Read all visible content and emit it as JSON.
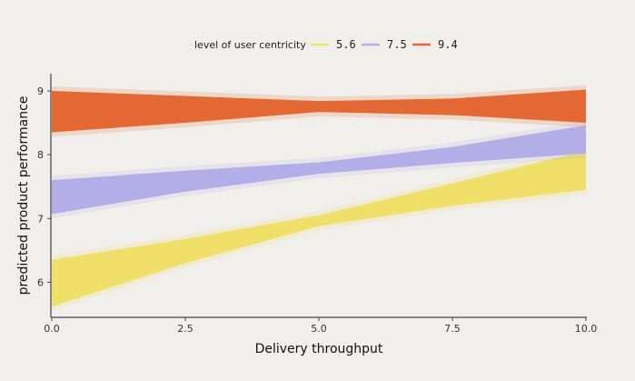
{
  "chart_data": {
    "type": "area",
    "title": "",
    "xlabel": "Delivery throughput",
    "ylabel": "predicted product performance",
    "xlim": [
      0,
      10
    ],
    "ylim": [
      5.45,
      9.27
    ],
    "xticks": [
      0,
      2.5,
      5,
      7.5,
      10
    ],
    "xtick_labels": [
      "0.0",
      "2.5",
      "5.0",
      "7.5",
      "10.0"
    ],
    "yticks": [
      6,
      7,
      8,
      9
    ],
    "ytick_labels": [
      "6",
      "7",
      "8",
      "9"
    ],
    "grid": false,
    "legend": {
      "title": "level of user centricity",
      "placement": "top-center"
    },
    "x": [
      0,
      2.5,
      5,
      7.5,
      10
    ],
    "series": [
      {
        "name": "5.6",
        "color": "#efdf68",
        "lower": [
          5.62,
          6.3,
          6.88,
          7.2,
          7.45
        ],
        "upper": [
          6.35,
          6.68,
          7.05,
          7.55,
          8.06
        ]
      },
      {
        "name": "7.5",
        "color": "#b3ade8",
        "lower": [
          7.07,
          7.42,
          7.7,
          7.87,
          8.02
        ],
        "upper": [
          7.6,
          7.75,
          7.88,
          8.12,
          8.46
        ]
      },
      {
        "name": "9.4",
        "color": "#e36833",
        "lower": [
          8.35,
          8.5,
          8.67,
          8.62,
          8.5
        ],
        "upper": [
          9.0,
          8.92,
          8.84,
          8.88,
          9.02
        ]
      }
    ]
  }
}
